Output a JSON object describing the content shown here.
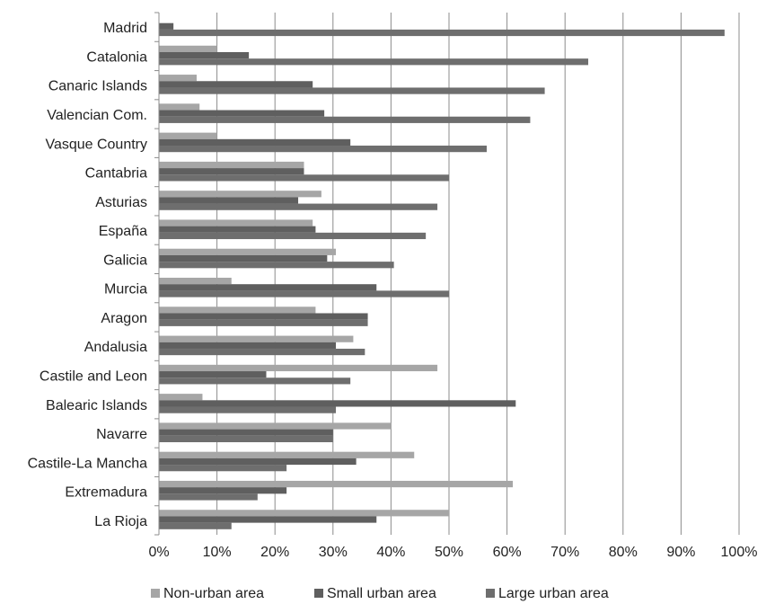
{
  "chart_data": {
    "type": "bar",
    "orientation": "horizontal",
    "title": "",
    "xlabel": "",
    "ylabel": "",
    "xlim": [
      0,
      100
    ],
    "x_ticks": [
      "0%",
      "10%",
      "20%",
      "30%",
      "40%",
      "50%",
      "60%",
      "70%",
      "80%",
      "90%",
      "100%"
    ],
    "grid": "vertical",
    "legend_position": "bottom",
    "categories": [
      "Madrid",
      "Catalonia",
      "Canaric Islands",
      "Valencian Com.",
      "Vasque Country",
      "Cantabria",
      "Asturias",
      "España",
      "Galicia",
      "Murcia",
      "Aragon",
      "Andalusia",
      "Castile and Leon",
      "Balearic Islands",
      "Navarre",
      "Castile-La Mancha",
      "Extremadura",
      "La Rioja"
    ],
    "series": [
      {
        "name": "Non-urban area",
        "color": "#a6a6a6",
        "values": [
          0,
          10,
          6.5,
          7,
          10,
          25,
          28,
          26.5,
          30.5,
          12.5,
          27,
          33.5,
          48,
          7.5,
          40,
          44,
          61,
          50
        ]
      },
      {
        "name": "Small urban area",
        "color": "#5f5f5f",
        "values": [
          2.5,
          15.5,
          26.5,
          28.5,
          33,
          25,
          24,
          27,
          29,
          37.5,
          36,
          30.5,
          18.5,
          61.5,
          30,
          34,
          22,
          37.5
        ]
      },
      {
        "name": "Large urban area",
        "color": "#6e6e6e",
        "values": [
          97.5,
          74,
          66.5,
          64,
          56.5,
          50,
          48,
          46,
          40.5,
          50,
          36,
          35.5,
          33,
          30.5,
          30,
          22,
          17,
          12.5
        ]
      }
    ]
  }
}
